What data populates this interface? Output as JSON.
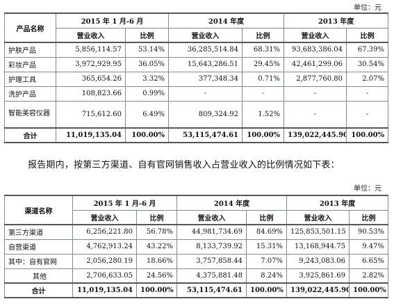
{
  "table1": {
    "unit": "单位：元",
    "header": {
      "name_col": "产品名称",
      "periods": [
        "2015 年 1 月-6 月",
        "2014 年度",
        "2013 年度"
      ],
      "rev_label": "营业收入",
      "ratio_label": "比例"
    },
    "rows": [
      {
        "name": "护肤产品",
        "c1": "5,856,114.57",
        "p1": "53.14%",
        "c2": "36,285,514.84",
        "p2": "68.31%",
        "c3": "93,683,386.04",
        "p3": "67.39%"
      },
      {
        "name": "彩妆产品",
        "c1": "3,972,929.95",
        "p1": "36.05%",
        "c2": "15,643,286.51",
        "p2": "29.45%",
        "c3": "42,461,299.06",
        "p3": "30.54%"
      },
      {
        "name": "护理工具",
        "c1": "365,654.26",
        "p1": "3.32%",
        "c2": "377,348.34",
        "p2": "0.71%",
        "c3": "2,877,760.80",
        "p3": "2.07%"
      },
      {
        "name": "洗护产品",
        "c1": "108,823.66",
        "p1": "0.99%",
        "c2": "-",
        "p2": "-",
        "c3": "-",
        "p3": "-"
      },
      {
        "name": "智能美容仪器",
        "c1": "715,612.60",
        "p1": "6.49%",
        "c2": "809,324.92",
        "p2": "1.52%",
        "c3": "-",
        "p3": "-"
      }
    ],
    "total": {
      "name": "合计",
      "c1": "11,019,135.04",
      "p1": "100.00%",
      "c2": "53,115,474.61",
      "p2": "100.00%",
      "c3": "139,022,445.90",
      "p3": "100.00%"
    }
  },
  "paragraph": "报告期内，按第三方渠道、自有官网销售收入占营业收入的比例情况如下表：",
  "table2": {
    "unit": "单位：元",
    "header": {
      "name_col": "渠道名称",
      "periods": [
        "2015 年 1 月-6 月",
        "2014 年度",
        "2013 年度"
      ],
      "rev_label": "营业收入",
      "ratio_label": "比例"
    },
    "rows": [
      {
        "name": "第三方渠道",
        "c1": "6,256,221.80",
        "p1": "56.78%",
        "c2": "44,981,734.69",
        "p2": "84.69%",
        "c3": "125,853,501.15",
        "p3": "90.53%"
      },
      {
        "name": "自营渠道",
        "c1": "4,762,913.24",
        "p1": "43.22%",
        "c2": "8,133,739.92",
        "p2": "15.31%",
        "c3": "13,168,944.75",
        "p3": "9.47%"
      },
      {
        "name": "其中：自有官网",
        "c1": "2,056,280.19",
        "p1": "18.66%",
        "c2": "3,757,858.44",
        "p2": "7.07%",
        "c3": "9,243,083.06",
        "p3": "6.65%"
      },
      {
        "name": "其他",
        "c1": "2,706,633.05",
        "p1": "24.56%",
        "c2": "4,375,881.48",
        "p2": "8.24%",
        "c3": "3,925,861.69",
        "p3": "2.82%"
      }
    ],
    "total": {
      "name": "合计",
      "c1": "11,019,135.04",
      "p1": "100.00%",
      "c2": "53,115,474.61",
      "p2": "100.00%",
      "c3": "139,022,445.90",
      "p3": "100.00%"
    }
  }
}
